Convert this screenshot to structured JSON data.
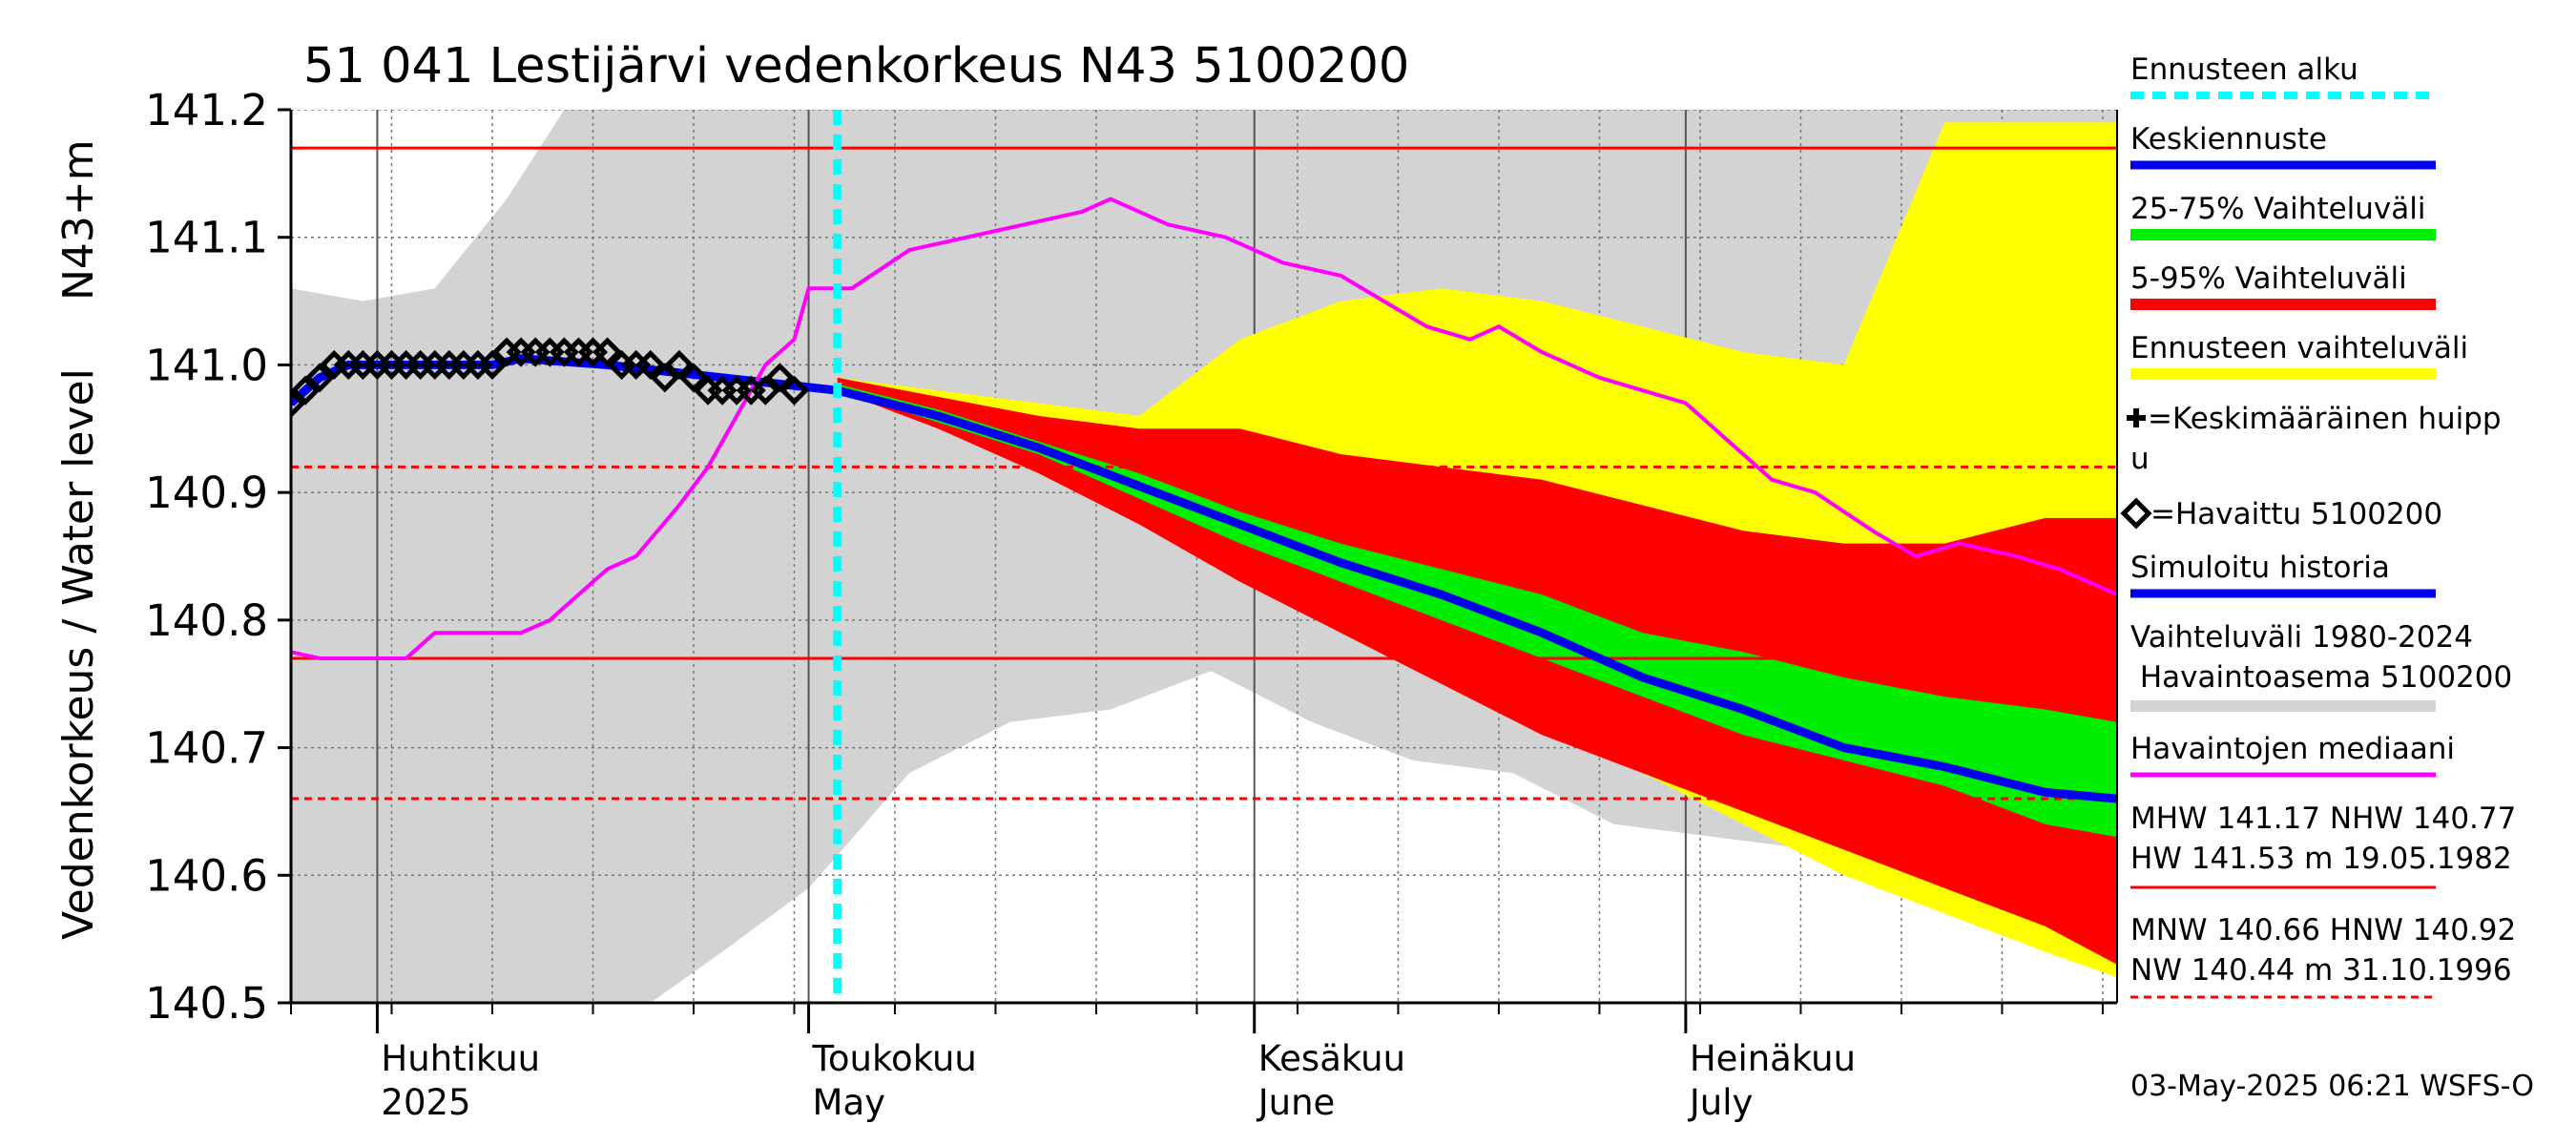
{
  "chart_data": {
    "type": "area",
    "title": "51 041 Lestijärvi vedenkorkeus N43 5100200",
    "ylabel": "Vedenkorkeus / Water level",
    "yunit": "N43+m",
    "ylim": [
      140.5,
      141.2
    ],
    "y_ticks": [
      "140.5",
      "140.6",
      "140.7",
      "140.8",
      "140.9",
      "141.0",
      "141.1",
      "141.2"
    ],
    "x_range": [
      "2025-03-26",
      "2025-07-31"
    ],
    "month_labels": [
      {
        "fi": "Huhtikuu",
        "en": "2025",
        "date": "2025-04-01"
      },
      {
        "fi": "Toukokuu",
        "en": "May",
        "date": "2025-05-01"
      },
      {
        "fi": "Kesäkuu",
        "en": "June",
        "date": "2025-06-01"
      },
      {
        "fi": "Heinäkuu",
        "en": "July",
        "date": "2025-07-01"
      }
    ],
    "forecast_start": "2025-05-03",
    "reference_lines": [
      {
        "name": "MHW",
        "value": 141.17,
        "style": "solid",
        "color": "#ff0000"
      },
      {
        "name": "NHW",
        "value": 140.77,
        "style": "solid",
        "color": "#ff0000"
      },
      {
        "name": "HNW",
        "value": 140.92,
        "style": "dashed",
        "color": "#ff0000"
      },
      {
        "name": "MNW",
        "value": 140.66,
        "style": "dashed",
        "color": "#ff0000"
      }
    ],
    "observed": {
      "name": "=Havaittu 5100200",
      "points": [
        [
          "2025-03-26",
          140.97
        ],
        [
          "2025-03-27",
          140.98
        ],
        [
          "2025-03-28",
          140.99
        ],
        [
          "2025-03-29",
          141.0
        ],
        [
          "2025-03-30",
          141.0
        ],
        [
          "2025-03-31",
          141.0
        ],
        [
          "2025-04-01",
          141.0
        ],
        [
          "2025-04-02",
          141.0
        ],
        [
          "2025-04-03",
          141.0
        ],
        [
          "2025-04-04",
          141.0
        ],
        [
          "2025-04-05",
          141.0
        ],
        [
          "2025-04-06",
          141.0
        ],
        [
          "2025-04-07",
          141.0
        ],
        [
          "2025-04-08",
          141.0
        ],
        [
          "2025-04-09",
          141.0
        ],
        [
          "2025-04-10",
          141.01
        ],
        [
          "2025-04-11",
          141.01
        ],
        [
          "2025-04-12",
          141.01
        ],
        [
          "2025-04-13",
          141.01
        ],
        [
          "2025-04-14",
          141.01
        ],
        [
          "2025-04-15",
          141.01
        ],
        [
          "2025-04-16",
          141.01
        ],
        [
          "2025-04-17",
          141.01
        ],
        [
          "2025-04-18",
          141.0
        ],
        [
          "2025-04-19",
          141.0
        ],
        [
          "2025-04-20",
          141.0
        ],
        [
          "2025-04-21",
          140.99
        ],
        [
          "2025-04-22",
          141.0
        ],
        [
          "2025-04-23",
          140.99
        ],
        [
          "2025-04-24",
          140.98
        ],
        [
          "2025-04-25",
          140.98
        ],
        [
          "2025-04-26",
          140.98
        ],
        [
          "2025-04-27",
          140.98
        ],
        [
          "2025-04-28",
          140.98
        ],
        [
          "2025-04-29",
          140.99
        ],
        [
          "2025-04-30",
          140.98
        ]
      ]
    },
    "simulated_history": {
      "name": "Simuloitu historia",
      "points": [
        [
          "2025-03-26",
          140.97
        ],
        [
          "2025-03-28",
          140.99
        ],
        [
          "2025-03-30",
          141.0
        ],
        [
          "2025-04-05",
          141.0
        ],
        [
          "2025-04-09",
          141.0
        ],
        [
          "2025-04-11",
          141.005
        ],
        [
          "2025-04-17",
          141.0
        ],
        [
          "2025-04-21",
          140.995
        ],
        [
          "2025-04-25",
          140.99
        ],
        [
          "2025-04-29",
          140.985
        ],
        [
          "2025-05-03",
          140.98
        ]
      ]
    },
    "median_forecast": {
      "name": "Keskiennuste",
      "points": [
        [
          "2025-05-03",
          140.98
        ],
        [
          "2025-05-10",
          140.96
        ],
        [
          "2025-05-17",
          140.935
        ],
        [
          "2025-05-24",
          140.905
        ],
        [
          "2025-05-31",
          140.875
        ],
        [
          "2025-06-07",
          140.845
        ],
        [
          "2025-06-14",
          140.82
        ],
        [
          "2025-06-21",
          140.79
        ],
        [
          "2025-06-28",
          140.755
        ],
        [
          "2025-07-05",
          140.73
        ],
        [
          "2025-07-12",
          140.7
        ],
        [
          "2025-07-19",
          140.685
        ],
        [
          "2025-07-26",
          140.665
        ],
        [
          "2025-07-31",
          140.66
        ]
      ]
    },
    "bands": {
      "dates": [
        "2025-05-03",
        "2025-05-10",
        "2025-05-17",
        "2025-05-24",
        "2025-05-31",
        "2025-06-07",
        "2025-06-14",
        "2025-06-21",
        "2025-06-28",
        "2025-07-05",
        "2025-07-12",
        "2025-07-19",
        "2025-07-26",
        "2025-07-31"
      ],
      "forecast_range": {
        "name": "Ennusteen vaihteluväli",
        "lower": [
          140.98,
          140.95,
          140.92,
          140.88,
          140.84,
          140.8,
          140.76,
          140.72,
          140.68,
          140.64,
          140.6,
          140.57,
          140.54,
          140.52
        ],
        "upper": [
          140.99,
          140.98,
          140.97,
          140.96,
          141.02,
          141.05,
          141.06,
          141.05,
          141.03,
          141.01,
          141.0,
          141.19,
          141.19,
          141.19
        ]
      },
      "p5_p95": {
        "name": "5-95% Vaihteluväli",
        "lower": [
          140.98,
          140.95,
          140.915,
          140.875,
          140.83,
          140.79,
          140.75,
          140.71,
          140.68,
          140.65,
          140.62,
          140.59,
          140.56,
          140.53
        ],
        "upper": [
          140.99,
          140.975,
          140.96,
          140.95,
          140.95,
          140.93,
          140.92,
          140.91,
          140.89,
          140.87,
          140.86,
          140.86,
          140.88,
          140.88
        ]
      },
      "p25_p75": {
        "name": "25-75% Vaihteluväli",
        "lower": [
          140.98,
          140.955,
          140.93,
          140.895,
          140.86,
          140.83,
          140.8,
          140.77,
          140.74,
          140.71,
          140.69,
          140.67,
          140.64,
          140.63
        ],
        "upper": [
          140.985,
          140.965,
          140.94,
          140.915,
          140.885,
          140.86,
          140.84,
          140.82,
          140.79,
          140.775,
          140.755,
          140.74,
          140.73,
          140.72
        ]
      }
    },
    "history_range": {
      "name": "Vaihteluväli 1980-2024\n Havaintoasema 5100200",
      "dates": [
        "2025-03-26",
        "2025-03-31",
        "2025-04-05",
        "2025-04-10",
        "2025-04-14",
        "2025-04-20",
        "2025-04-25",
        "2025-05-01",
        "2025-05-08",
        "2025-05-15",
        "2025-05-22",
        "2025-05-29",
        "2025-06-05",
        "2025-06-12",
        "2025-06-19",
        "2025-06-26",
        "2025-07-03",
        "2025-07-10",
        "2025-07-17",
        "2025-07-24",
        "2025-07-31"
      ],
      "lower": [
        140.5,
        140.5,
        140.5,
        140.5,
        140.5,
        140.5,
        140.54,
        140.59,
        140.68,
        140.72,
        140.73,
        140.76,
        140.72,
        140.69,
        140.68,
        140.64,
        140.63,
        140.62,
        140.62,
        140.61,
        140.6
      ],
      "upper": [
        141.06,
        141.05,
        141.06,
        141.13,
        141.2,
        141.2,
        141.2,
        141.2,
        141.2,
        141.2,
        141.2,
        141.2,
        141.2,
        141.2,
        141.2,
        141.2,
        141.2,
        141.2,
        141.2,
        141.2,
        141.2
      ]
    },
    "obs_median": {
      "name": "Havaintojen mediaani",
      "points": [
        [
          "2025-03-26",
          140.775
        ],
        [
          "2025-03-28",
          140.77
        ],
        [
          "2025-04-03",
          140.77
        ],
        [
          "2025-04-05",
          140.79
        ],
        [
          "2025-04-11",
          140.79
        ],
        [
          "2025-04-13",
          140.8
        ],
        [
          "2025-04-15",
          140.82
        ],
        [
          "2025-04-17",
          140.84
        ],
        [
          "2025-04-19",
          140.85
        ],
        [
          "2025-04-22",
          140.89
        ],
        [
          "2025-04-24",
          140.92
        ],
        [
          "2025-04-26",
          140.96
        ],
        [
          "2025-04-28",
          141.0
        ],
        [
          "2025-04-30",
          141.02
        ],
        [
          "2025-05-01",
          141.06
        ],
        [
          "2025-05-04",
          141.06
        ],
        [
          "2025-05-08",
          141.09
        ],
        [
          "2025-05-12",
          141.1
        ],
        [
          "2025-05-16",
          141.11
        ],
        [
          "2025-05-20",
          141.12
        ],
        [
          "2025-05-22",
          141.13
        ],
        [
          "2025-05-26",
          141.11
        ],
        [
          "2025-05-30",
          141.1
        ],
        [
          "2025-06-03",
          141.08
        ],
        [
          "2025-06-07",
          141.07
        ],
        [
          "2025-06-10",
          141.05
        ],
        [
          "2025-06-13",
          141.03
        ],
        [
          "2025-06-16",
          141.02
        ],
        [
          "2025-06-18",
          141.03
        ],
        [
          "2025-06-21",
          141.01
        ],
        [
          "2025-06-25",
          140.99
        ],
        [
          "2025-06-28",
          140.98
        ],
        [
          "2025-07-01",
          140.97
        ],
        [
          "2025-07-04",
          140.94
        ],
        [
          "2025-07-07",
          140.91
        ],
        [
          "2025-07-10",
          140.9
        ],
        [
          "2025-07-14",
          140.87
        ],
        [
          "2025-07-17",
          140.85
        ],
        [
          "2025-07-20",
          140.86
        ],
        [
          "2025-07-24",
          140.85
        ],
        [
          "2025-07-27",
          140.84
        ],
        [
          "2025-07-31",
          140.82
        ]
      ]
    },
    "colors": {
      "history": "#d3d3d3",
      "forecast_range": "#ffff00",
      "p5_p95": "#ff0000",
      "p25_p75": "#00ee00",
      "median": "#0000ee",
      "obs_median": "#ff00ff",
      "forecast_start": "#00ffff",
      "observed_marker": "#000000",
      "ref_line": "#ff0000"
    }
  },
  "legend": {
    "items": [
      {
        "label": "Ennusteen alku",
        "color": "#00ffff",
        "style": "dashed"
      },
      {
        "label": "Keskiennuste",
        "color": "#0000ee",
        "style": "solid"
      },
      {
        "label": "25-75% Vaihteluväli",
        "color": "#00ee00",
        "style": "solid"
      },
      {
        "label": "5-95% Vaihteluväli",
        "color": "#ff0000",
        "style": "solid"
      },
      {
        "label": "Ennusteen vaihteluväli",
        "color": "#ffff00",
        "style": "solid"
      }
    ],
    "mean_peak_line1": "=Keskimääräinen huipp",
    "mean_peak_line2": "u",
    "observed_label": "=Havaittu 5100200",
    "simulated_label": "Simuloitu historia",
    "range_line1": "Vaihteluväli 1980-2024",
    "range_line2": " Havaintoasema 5100200",
    "median_label": "Havaintojen mediaani",
    "stats1_line1": "MHW 141.17 NHW 140.77",
    "stats1_line2": "HW 141.53 m 19.05.1982",
    "stats2_line1": "MNW 140.66 HNW 140.92",
    "stats2_line2": "NW 140.44 m 31.10.1996"
  },
  "footer": "03-May-2025 06:21 WSFS-O"
}
